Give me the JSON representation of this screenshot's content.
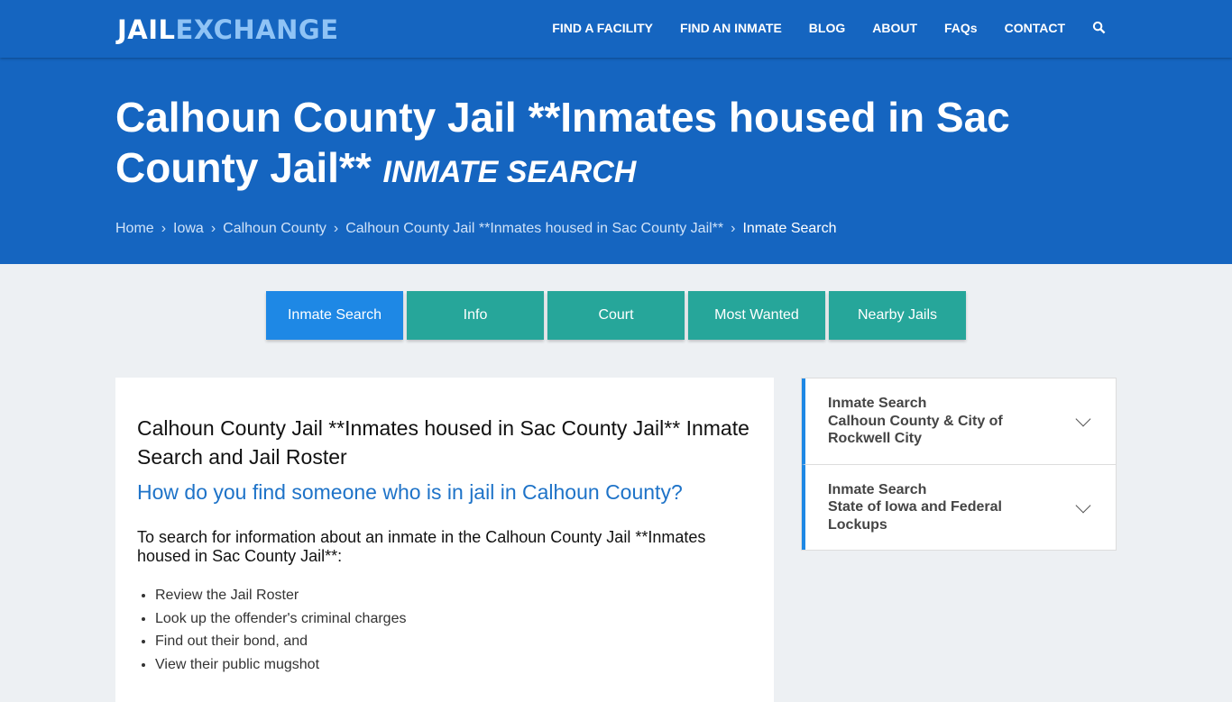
{
  "logo": {
    "part1": "JAIL",
    "part2": "EXCHANGE"
  },
  "nav": [
    "FIND A FACILITY",
    "FIND AN INMATE",
    "BLOG",
    "ABOUT",
    "FAQs",
    "CONTACT"
  ],
  "hero": {
    "title": "Calhoun County Jail **Inmates housed in Sac County Jail**",
    "subtitle": "INMATE SEARCH"
  },
  "breadcrumbs": [
    "Home",
    "Iowa",
    "Calhoun County",
    "Calhoun County Jail **Inmates housed in Sac County Jail**",
    "Inmate Search"
  ],
  "tabs": [
    "Inmate Search",
    "Info",
    "Court",
    "Most Wanted",
    "Nearby Jails"
  ],
  "main": {
    "heading": "Calhoun County Jail **Inmates housed in Sac County Jail** Inmate Search and Jail Roster",
    "question": "How do you find someone who is in jail in Calhoun County?",
    "intro": "To search for information about an inmate in the Calhoun County Jail **Inmates housed in Sac County Jail**:",
    "bullets": [
      "Review the Jail Roster",
      "Look up the offender's criminal charges",
      "Find out their bond, and",
      "View their public mugshot"
    ]
  },
  "sidebar": [
    {
      "title": "Inmate Search",
      "sub": "Calhoun County & City of Rockwell City"
    },
    {
      "title": "Inmate Search",
      "sub": "State of Iowa and Federal Lockups"
    }
  ]
}
